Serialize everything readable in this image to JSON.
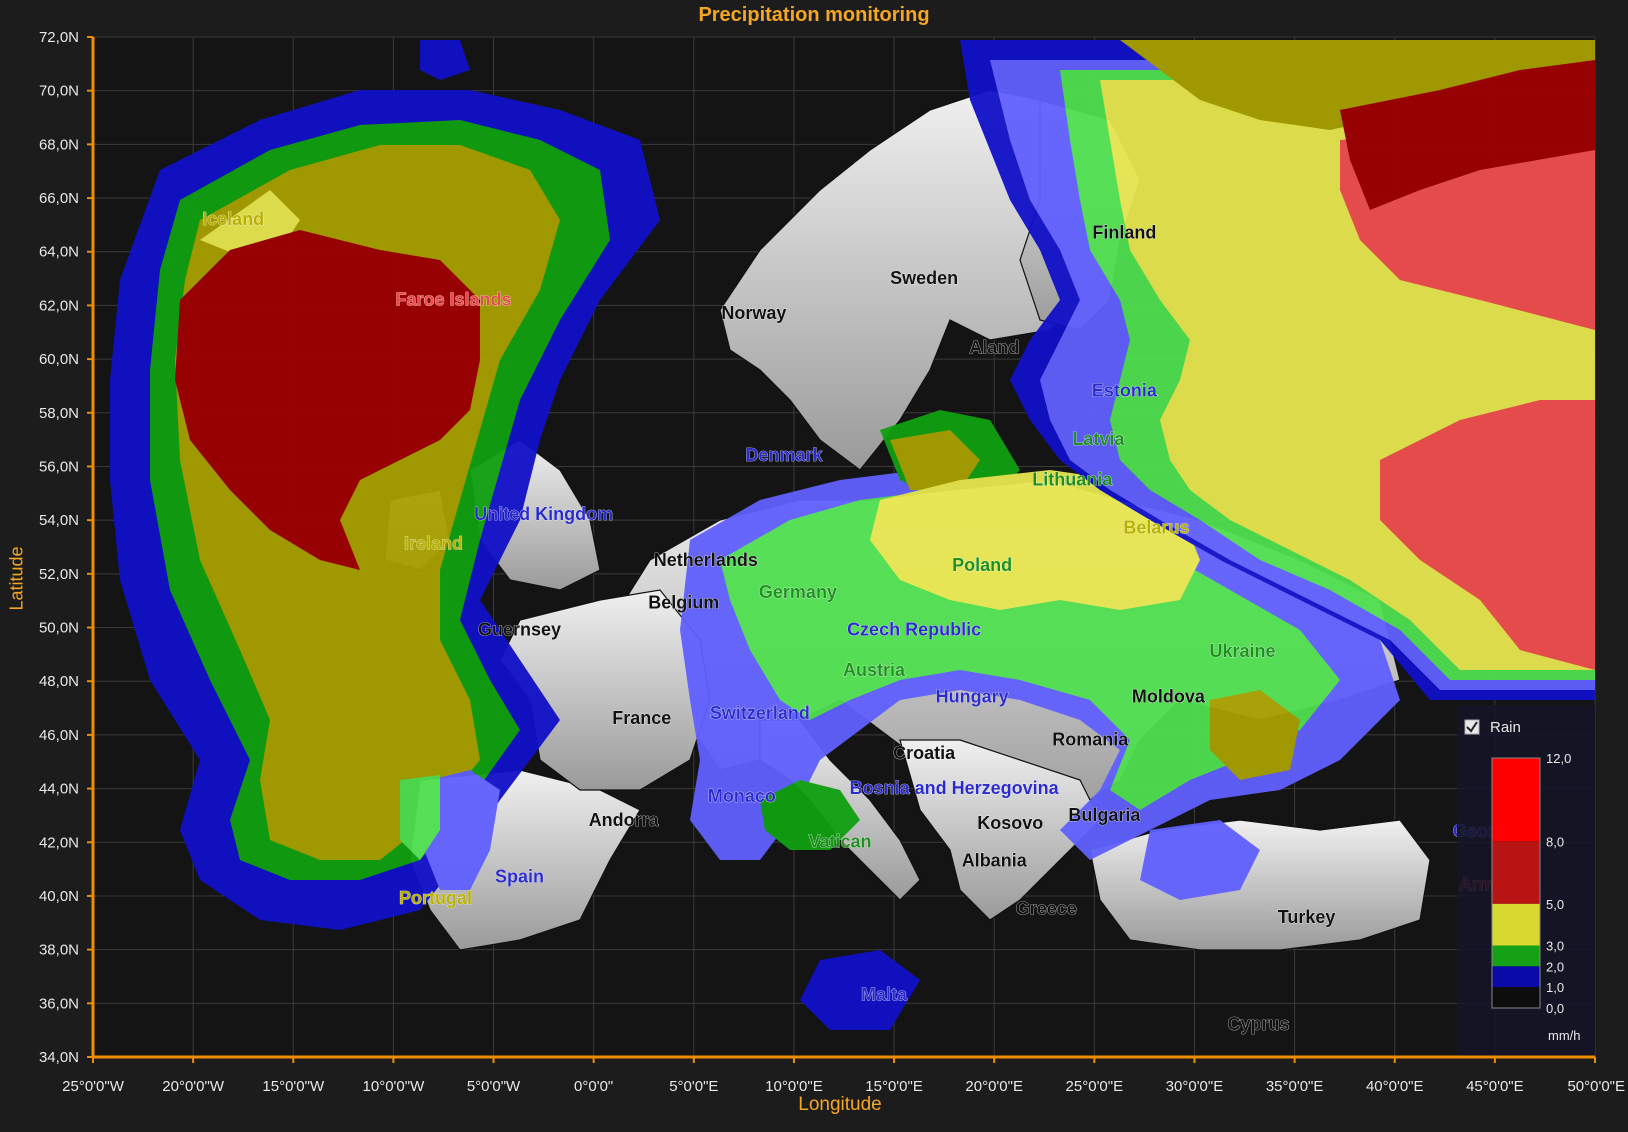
{
  "title": "Precipitation monitoring",
  "axes": {
    "y_label": "Latitude",
    "x_label": "Longitude",
    "y_ticks": [
      "72,0N",
      "70,0N",
      "68,0N",
      "66,0N",
      "64,0N",
      "62,0N",
      "60,0N",
      "58,0N",
      "56,0N",
      "54,0N",
      "52,0N",
      "50,0N",
      "48,0N",
      "46,0N",
      "44,0N",
      "42,0N",
      "40,0N",
      "38,0N",
      "36,0N",
      "34,0N"
    ],
    "x_ticks": [
      "25°0'0\"W",
      "20°0'0\"W",
      "15°0'0\"W",
      "10°0'0\"W",
      "5°0'0\"W",
      "0°0'0\"",
      "5°0'0\"E",
      "10°0'0\"E",
      "15°0'0\"E",
      "20°0'0\"E",
      "25°0'0\"E",
      "30°0'0\"E",
      "35°0'0\"E",
      "40°0'0\"E",
      "45°0'0\"E",
      "50°0'0\"E"
    ],
    "lat_range": [
      34,
      72
    ],
    "lon_range": [
      -25,
      50
    ]
  },
  "country_labels": [
    {
      "name": "Iceland",
      "lon": -18,
      "lat": 65,
      "color": "#b8b000"
    },
    {
      "name": "Faroe Islands",
      "lon": -7,
      "lat": 62,
      "color": "#e84a4a"
    },
    {
      "name": "Norway",
      "lon": 8,
      "lat": 61.5,
      "color": "#111111"
    },
    {
      "name": "Sweden",
      "lon": 16.5,
      "lat": 62.8,
      "color": "#111111"
    },
    {
      "name": "Finland",
      "lon": 26.5,
      "lat": 64.5,
      "color": "#111111"
    },
    {
      "name": "Aland",
      "lon": 20,
      "lat": 60.2,
      "color": "#111111"
    },
    {
      "name": "Estonia",
      "lon": 26.5,
      "lat": 58.6,
      "color": "#2b2bcc"
    },
    {
      "name": "Latvia",
      "lon": 25.2,
      "lat": 56.8,
      "color": "#1f8f1f"
    },
    {
      "name": "Lithuania",
      "lon": 23.9,
      "lat": 55.3,
      "color": "#1f8f1f"
    },
    {
      "name": "Denmark",
      "lon": 9.5,
      "lat": 56.2,
      "color": "#2b2bcc"
    },
    {
      "name": "United Kingdom",
      "lon": -2.5,
      "lat": 54,
      "color": "#2b2bcc"
    },
    {
      "name": "Ireland",
      "lon": -8,
      "lat": 52.9,
      "color": "#b8b000"
    },
    {
      "name": "Netherlands",
      "lon": 5.6,
      "lat": 52.3,
      "color": "#111111"
    },
    {
      "name": "Belgium",
      "lon": 4.5,
      "lat": 50.7,
      "color": "#111111"
    },
    {
      "name": "Guernsey",
      "lon": -3.7,
      "lat": 49.7,
      "color": "#111111"
    },
    {
      "name": "Germany",
      "lon": 10.2,
      "lat": 51.1,
      "color": "#1f8f1f"
    },
    {
      "name": "Poland",
      "lon": 19.4,
      "lat": 52.1,
      "color": "#1f8f1f"
    },
    {
      "name": "Belarus",
      "lon": 28.1,
      "lat": 53.5,
      "color": "#b8b000"
    },
    {
      "name": "Czech Republic",
      "lon": 16,
      "lat": 49.7,
      "color": "#2b2bcc"
    },
    {
      "name": "Ukraine",
      "lon": 32.4,
      "lat": 48.9,
      "color": "#1f8f1f"
    },
    {
      "name": "Austria",
      "lon": 14,
      "lat": 48.2,
      "color": "#1f8f1f"
    },
    {
      "name": "Hungary",
      "lon": 18.9,
      "lat": 47.2,
      "color": "#2b2bcc"
    },
    {
      "name": "Moldova",
      "lon": 28.7,
      "lat": 47.2,
      "color": "#111111"
    },
    {
      "name": "France",
      "lon": 2.4,
      "lat": 46.4,
      "color": "#111111"
    },
    {
      "name": "Switzerland",
      "lon": 8.3,
      "lat": 46.6,
      "color": "#2b2bcc"
    },
    {
      "name": "Romania",
      "lon": 24.8,
      "lat": 45.6,
      "color": "#111111"
    },
    {
      "name": "Croatia",
      "lon": 16.5,
      "lat": 45.1,
      "color": "#111111"
    },
    {
      "name": "Bosnia and Herzegovina",
      "lon": 18,
      "lat": 43.8,
      "color": "#2b2bcc"
    },
    {
      "name": "Monaco",
      "lon": 7.4,
      "lat": 43.5,
      "color": "#2b2bcc"
    },
    {
      "name": "Andorra",
      "lon": 1.5,
      "lat": 42.6,
      "color": "#111111"
    },
    {
      "name": "Kosovo",
      "lon": 20.8,
      "lat": 42.5,
      "color": "#111111"
    },
    {
      "name": "Bulgaria",
      "lon": 25.5,
      "lat": 42.8,
      "color": "#111111"
    },
    {
      "name": "Vatican",
      "lon": 12.3,
      "lat": 41.8,
      "color": "#1f8f1f"
    },
    {
      "name": "Albania",
      "lon": 20,
      "lat": 41.1,
      "color": "#111111"
    },
    {
      "name": "Georgia",
      "lon": 44.6,
      "lat": 42.2,
      "color": "#2b2bcc"
    },
    {
      "name": "Spain",
      "lon": -3.7,
      "lat": 40.5,
      "color": "#2b2bcc"
    },
    {
      "name": "Portugal",
      "lon": -7.9,
      "lat": 39.7,
      "color": "#b8b000"
    },
    {
      "name": "Armenia",
      "lon": 45,
      "lat": 40.2,
      "color": "#a01010"
    },
    {
      "name": "Greece",
      "lon": 22.6,
      "lat": 39.3,
      "color": "#111111"
    },
    {
      "name": "Turkey",
      "lon": 35.6,
      "lat": 39,
      "color": "#111111"
    },
    {
      "name": "Malta",
      "lon": 14.5,
      "lat": 36.1,
      "color": "#2b2bcc"
    },
    {
      "name": "Cyprus",
      "lon": 33.2,
      "lat": 35,
      "color": "#111111"
    }
  ],
  "legend": {
    "series_name": "Rain",
    "checked": true,
    "unit": "mm/h",
    "tick_labels": [
      "12,0",
      "8,0",
      "5,0",
      "3,0",
      "2,0",
      "1,0",
      "0,0"
    ],
    "bands": [
      {
        "from": 8,
        "to": 12,
        "color": "#ff0000"
      },
      {
        "from": 5,
        "to": 8,
        "color": "#b81414"
      },
      {
        "from": 3,
        "to": 5,
        "color": "#d8d830"
      },
      {
        "from": 2,
        "to": 3,
        "color": "#16a016"
      },
      {
        "from": 1,
        "to": 2,
        "color": "#0a0aa8"
      },
      {
        "from": 0,
        "to": 1,
        "color": "#0d0d0d"
      }
    ]
  },
  "colors": {
    "background": "#1c1c1c",
    "plot_background": "#141414",
    "axis_accent": "#f08c00",
    "title": "#f5a623",
    "land": "#d8d8d8",
    "rain_blue": "#1010c8",
    "rain_lightblue": "#6060ff",
    "rain_green": "#10a010",
    "rain_lightgreen": "#50e050",
    "rain_olive": "#a8a000",
    "rain_yellow": "#e6e650",
    "rain_darkred": "#a00000",
    "rain_lightred": "#f05050"
  }
}
